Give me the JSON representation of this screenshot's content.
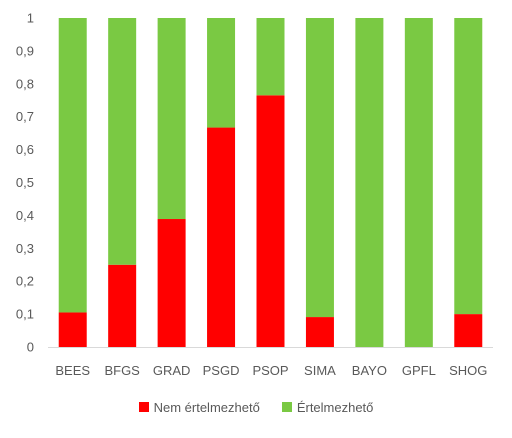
{
  "chart_data": {
    "type": "bar",
    "stacked": true,
    "categories": [
      "BEES",
      "BFGS",
      "GRAD",
      "PSGD",
      "PSOP",
      "SIMA",
      "BAYO",
      "GPFL",
      "SHOG"
    ],
    "series": [
      {
        "name": "Nem értelmezhető",
        "color": "#ff0000",
        "values": [
          0.105,
          0.25,
          0.389,
          0.667,
          0.765,
          0.091,
          0.0,
          0.0,
          0.1
        ]
      },
      {
        "name": "Értelmezhető",
        "color": "#7ac943",
        "values": [
          0.895,
          0.75,
          0.611,
          0.333,
          0.235,
          0.909,
          1.0,
          1.0,
          0.9
        ]
      }
    ],
    "yticks": [
      "0",
      "0,1",
      "0,2",
      "0,3",
      "0,4",
      "0,5",
      "0,6",
      "0,7",
      "0,8",
      "0,9",
      "1"
    ],
    "ylim": [
      0,
      1
    ],
    "grid": false,
    "legend_position": "bottom",
    "title": "",
    "xlabel": "",
    "ylabel": ""
  }
}
